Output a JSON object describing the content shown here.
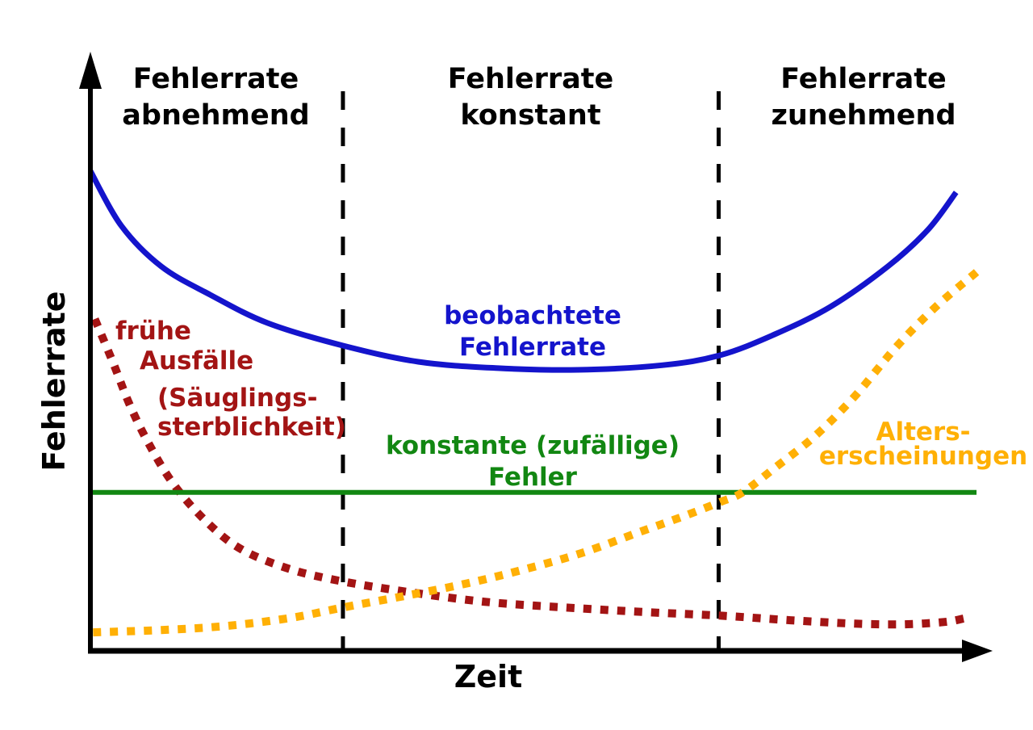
{
  "page": {
    "background": "#ffffff"
  },
  "colors": {
    "axis": "#000000",
    "header_text": "#000000",
    "observed": "#1414cc",
    "early": "#a31414",
    "constant": "#128712",
    "aging": "#ffb005"
  },
  "headers": {
    "left": [
      "Fehlerrate",
      "abnehmend"
    ],
    "middle": [
      "Fehlerrate",
      "konstant"
    ],
    "right": [
      "Fehlerrate",
      "zunehmend"
    ]
  },
  "axes": {
    "y_label": "Fehlerrate",
    "x_label": "Zeit"
  },
  "labels": {
    "observed": [
      "beobachtete",
      "Fehlerrate"
    ],
    "early": [
      "frühe",
      "Ausfälle"
    ],
    "infant": [
      "(Säuglings-",
      "sterblichkeit)"
    ],
    "constant": [
      "konstante (zufällige)",
      "Fehler"
    ],
    "aging": [
      "Alters-",
      "erscheinungen"
    ]
  },
  "chart_data": {
    "type": "line",
    "title": "",
    "xlabel": "Zeit",
    "ylabel": "Fehlerrate",
    "x_range": [
      0,
      100
    ],
    "y_range": [
      0,
      100
    ],
    "axes_quantitative": false,
    "grid": false,
    "legend_position": "inline-annotations",
    "phases": [
      "Fehlerrate abnehmend",
      "Fehlerrate konstant",
      "Fehlerrate zunehmend"
    ],
    "phase_boundaries_x": [
      28.5,
      70.9
    ],
    "series": [
      {
        "name": "beobachtete Fehlerrate",
        "color": "#1414cc",
        "style": "solid",
        "width": 7,
        "smooth": true,
        "points": [
          [
            0,
            83
          ],
          [
            3.5,
            73.5
          ],
          [
            8,
            66.5
          ],
          [
            13.5,
            61.6
          ],
          [
            20,
            56.7
          ],
          [
            28.5,
            52.8
          ],
          [
            37,
            50
          ],
          [
            46,
            48.9
          ],
          [
            55,
            48.6
          ],
          [
            64.5,
            49.4
          ],
          [
            71,
            51.1
          ],
          [
            77,
            54.6
          ],
          [
            83.5,
            59.5
          ],
          [
            90,
            66.5
          ],
          [
            94.5,
            72.8
          ],
          [
            97.7,
            79.3
          ]
        ]
      },
      {
        "name": "frühe Ausfälle (Säuglingssterblichkeit)",
        "color": "#a31414",
        "style": "dotted",
        "width": 10,
        "smooth": true,
        "points": [
          [
            0.5,
            57.4
          ],
          [
            2.6,
            49.7
          ],
          [
            4.4,
            42.7
          ],
          [
            6.6,
            35.8
          ],
          [
            9.4,
            28.8
          ],
          [
            13,
            22.5
          ],
          [
            17,
            17.6
          ],
          [
            22.6,
            14.1
          ],
          [
            28.5,
            12
          ],
          [
            35.8,
            10.2
          ],
          [
            44.4,
            8.5
          ],
          [
            53.6,
            7.5
          ],
          [
            62.7,
            6.7
          ],
          [
            71,
            6.1
          ],
          [
            79,
            5.3
          ],
          [
            86.3,
            4.7
          ],
          [
            91.8,
            4.6
          ],
          [
            96.4,
            5
          ],
          [
            98.6,
            5.6
          ]
        ]
      },
      {
        "name": "konstante (zufällige) Fehler",
        "color": "#128712",
        "style": "solid",
        "width": 6,
        "smooth": false,
        "points": [
          [
            0,
            27.4
          ],
          [
            100,
            27.4
          ]
        ]
      },
      {
        "name": "Alterserscheinungen",
        "color": "#ffb005",
        "style": "dotted",
        "width": 10,
        "smooth": true,
        "points": [
          [
            0.3,
            3.2
          ],
          [
            8,
            3.6
          ],
          [
            15.3,
            4.3
          ],
          [
            22.6,
            5.7
          ],
          [
            28.5,
            7.5
          ],
          [
            35.8,
            9.6
          ],
          [
            42.6,
            11.7
          ],
          [
            49,
            14.1
          ],
          [
            55.4,
            16.9
          ],
          [
            61.7,
            20.4
          ],
          [
            66.8,
            23.2
          ],
          [
            71,
            25.7
          ],
          [
            73.6,
            27.4
          ],
          [
            77.2,
            31.6
          ],
          [
            81.8,
            37.2
          ],
          [
            86.3,
            44.1
          ],
          [
            90.9,
            52.5
          ],
          [
            95.4,
            59.5
          ],
          [
            100,
            65.5
          ]
        ]
      }
    ]
  }
}
